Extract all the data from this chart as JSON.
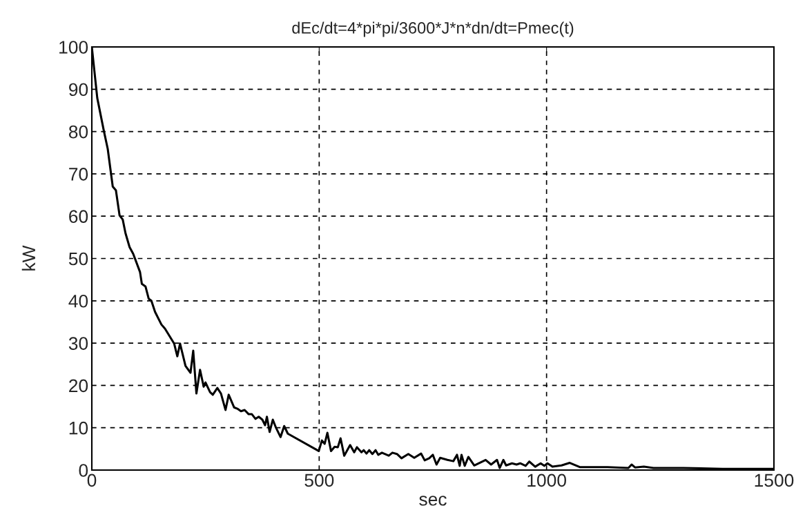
{
  "chart_data": {
    "type": "line",
    "title": "dEc/dt=4*pi*pi/3600*J*n*dn/dt=Pmec(t)",
    "xlabel": "sec",
    "ylabel": "kW",
    "x": [
      0,
      12,
      26,
      35,
      46,
      53,
      61,
      68,
      74,
      83,
      91,
      106,
      110,
      118,
      125,
      131,
      139,
      153,
      161,
      181,
      188,
      194,
      206,
      217,
      223,
      230,
      238,
      246,
      250,
      260,
      266,
      276,
      284,
      294,
      301,
      313,
      320,
      328,
      336,
      345,
      352,
      360,
      367,
      375,
      381,
      385,
      391,
      398,
      405,
      415,
      423,
      431,
      499,
      506,
      512,
      518,
      526,
      534,
      541,
      547,
      555,
      568,
      577,
      583,
      593,
      598,
      604,
      610,
      617,
      624,
      630,
      638,
      653,
      661,
      671,
      681,
      696,
      709,
      724,
      732,
      742,
      750,
      758,
      766,
      782,
      795,
      803,
      809,
      813,
      820,
      828,
      841,
      866,
      878,
      891,
      897,
      905,
      911,
      924,
      934,
      942,
      954,
      962,
      975,
      987,
      995,
      1002,
      1013,
      1033,
      1051,
      1073,
      1134,
      1180,
      1187,
      1195,
      1214,
      1235,
      1301,
      1387,
      1498
    ],
    "series": [
      {
        "color": "#000000",
        "values": [
          100,
          87.9,
          80.4,
          75.9,
          67.0,
          66.1,
          60.2,
          59.2,
          56,
          52.7,
          51.1,
          46.8,
          44.0,
          43.4,
          40.5,
          40,
          37.4,
          34.4,
          33.4,
          29.9,
          26.9,
          29.9,
          24.6,
          23,
          28.2,
          18.1,
          23.7,
          19.7,
          20.7,
          18.4,
          17.8,
          19.4,
          18.1,
          14.2,
          17.8,
          14.8,
          14.5,
          13.9,
          14.2,
          13.2,
          13.2,
          12.1,
          12.6,
          11.9,
          10.6,
          12.6,
          9.0,
          11.9,
          10,
          7.8,
          10.4,
          8.6,
          4.5,
          7.0,
          6.2,
          8.8,
          4.5,
          5.5,
          5.4,
          7.5,
          3.4,
          5.9,
          4.2,
          5.4,
          4.2,
          4.7,
          3.9,
          4.7,
          3.8,
          4.7,
          3.6,
          4.1,
          3.4,
          4.1,
          3.8,
          2.8,
          3.8,
          2.9,
          3.9,
          2.3,
          2.8,
          3.6,
          1.3,
          2.9,
          2.4,
          2.1,
          3.6,
          1.0,
          3.6,
          1.0,
          3.1,
          1.1,
          2.4,
          1.3,
          2.4,
          0.5,
          2.4,
          1.1,
          1.6,
          1.3,
          1.6,
          1.0,
          2.0,
          0.8,
          1.6,
          1.0,
          1.6,
          0.8,
          1.1,
          1.7,
          0.7,
          0.7,
          0.5,
          1.3,
          0.6,
          0.8,
          0.5,
          0.5,
          0.3,
          0.3
        ]
      }
    ],
    "xlim": [
      0,
      1500
    ],
    "xticks": [
      0,
      500,
      1000,
      1500
    ],
    "ylim": [
      0,
      100
    ],
    "yticks": [
      0,
      10,
      20,
      30,
      40,
      50,
      60,
      70,
      80,
      90,
      100
    ],
    "grid": true,
    "line_style": "solid",
    "marker": "none"
  }
}
